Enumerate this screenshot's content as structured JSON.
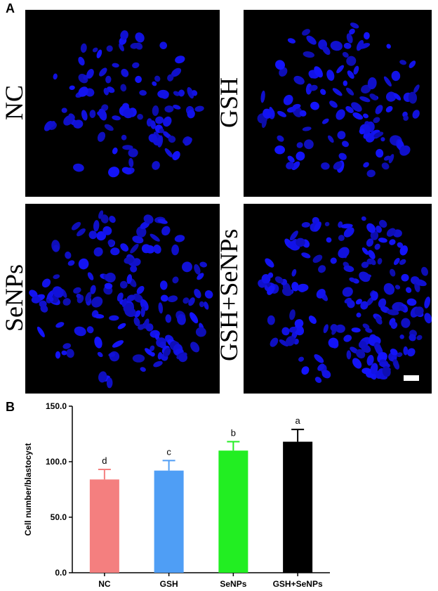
{
  "panel_a": {
    "letter": "A",
    "images": [
      {
        "label": "NC"
      },
      {
        "label": "GSH"
      },
      {
        "label": "SeNPs"
      },
      {
        "label": "GSH+SeNPs"
      }
    ],
    "nucleus_color": "#1a1aff"
  },
  "panel_b": {
    "letter": "B"
  },
  "chart_data": {
    "type": "bar",
    "categories": [
      "NC",
      "GSH",
      "SeNPs",
      "GSH+SeNPs"
    ],
    "values": [
      84,
      92,
      110,
      118
    ],
    "errors": [
      9,
      9,
      8,
      11
    ],
    "significance": [
      "d",
      "c",
      "b",
      "a"
    ],
    "colors": [
      "#f47f7f",
      "#4f9ef5",
      "#22ee22",
      "#000000"
    ],
    "ylabel": "Cell number/blastocyst",
    "xlabel": "",
    "ylim": [
      0,
      150
    ],
    "yticks": [
      "0.0",
      "50.0",
      "100.0",
      "150.0"
    ],
    "grid": false
  }
}
